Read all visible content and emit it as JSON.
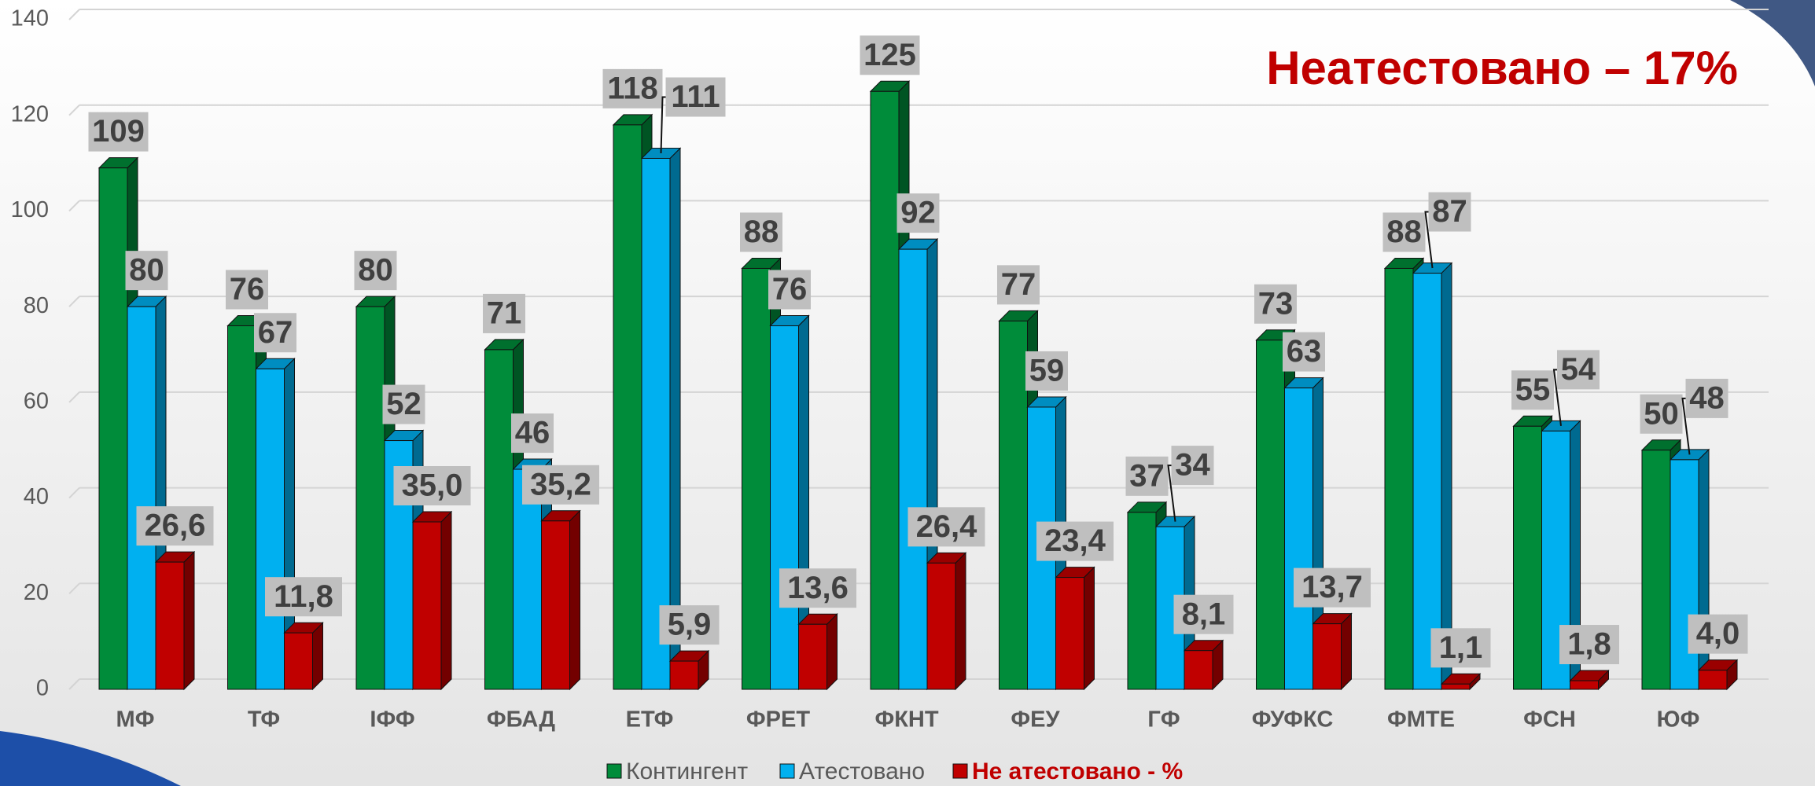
{
  "chart_data": {
    "type": "bar3d",
    "title": "Неатестовано – 17%",
    "categories": [
      "МФ",
      "ТФ",
      "ІФФ",
      "ФБАД",
      "ЕТФ",
      "ФРЕТ",
      "ФКНТ",
      "ФЕУ",
      "ГФ",
      "ФУФКС",
      "ФМТЕ",
      "ФСН",
      "ЮФ"
    ],
    "series": [
      {
        "name": "Контингент",
        "color": "#008c3a",
        "values": [
          109,
          76,
          80,
          71,
          118,
          88,
          125,
          77,
          37,
          73,
          88,
          55,
          50
        ]
      },
      {
        "name": "Атестовано",
        "color": "#00b0f0",
        "values": [
          80,
          67,
          52,
          46,
          111,
          76,
          92,
          59,
          34,
          63,
          87,
          54,
          48
        ]
      },
      {
        "name": "Не атестовано - %",
        "color": "#c00000",
        "values": [
          26.6,
          11.8,
          35.0,
          35.2,
          5.9,
          13.6,
          26.4,
          23.4,
          8.1,
          13.7,
          1.1,
          1.8,
          4.0
        ],
        "value_labels": [
          "26,6",
          "11,8",
          "35,0",
          "35,2",
          "5,9",
          "13,6",
          "26,4",
          "23,4",
          "8,1",
          "13,7",
          "1,1",
          "1,8",
          "4,0"
        ]
      }
    ],
    "ylim": [
      0,
      140
    ],
    "yticks": [
      0,
      20,
      40,
      60,
      80,
      100,
      120,
      140
    ],
    "grid": true,
    "legend": "bottom"
  }
}
